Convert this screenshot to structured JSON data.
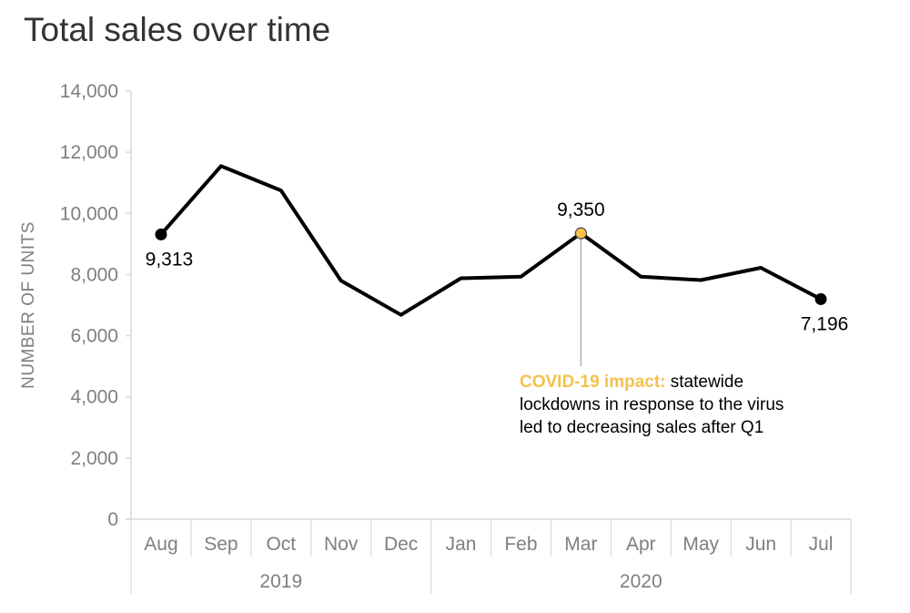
{
  "chart_data": {
    "type": "line",
    "title": "Total sales over time",
    "ylabel": "NUMBER OF UNITS",
    "xlabel": "",
    "ylim": [
      0,
      14000
    ],
    "yticks": [
      0,
      2000,
      4000,
      6000,
      8000,
      10000,
      12000,
      14000
    ],
    "ytick_labels": [
      "0",
      "2,000",
      "4,000",
      "6,000",
      "8,000",
      "10,000",
      "12,000",
      "14,000"
    ],
    "grid": false,
    "categories": [
      "Aug",
      "Sep",
      "Oct",
      "Nov",
      "Dec",
      "Jan",
      "Feb",
      "Mar",
      "Apr",
      "May",
      "Jun",
      "Jul"
    ],
    "years": [
      {
        "label": "2019",
        "span": 5
      },
      {
        "label": "2020",
        "span": 7
      }
    ],
    "series": [
      {
        "values": [
          9313,
          11550,
          10750,
          7800,
          6680,
          7880,
          7930,
          9350,
          7930,
          7820,
          8220,
          7196
        ]
      }
    ],
    "data_labels": [
      {
        "index": 0,
        "text": "9,313"
      },
      {
        "index": 7,
        "text": "9,350"
      },
      {
        "index": 11,
        "text": "7,196"
      }
    ],
    "highlight_index": 7,
    "annotation": {
      "title": "COVID-19 impact:",
      "lines": [
        "statewide",
        "lockdowns in response to the virus",
        "led to decreasing sales after Q1"
      ]
    },
    "colors": {
      "line": "#000000",
      "highlight": "#f6c14c",
      "axis": "#d9d9d9",
      "tick_text": "#7f7f7f",
      "title_text": "#333333"
    }
  }
}
